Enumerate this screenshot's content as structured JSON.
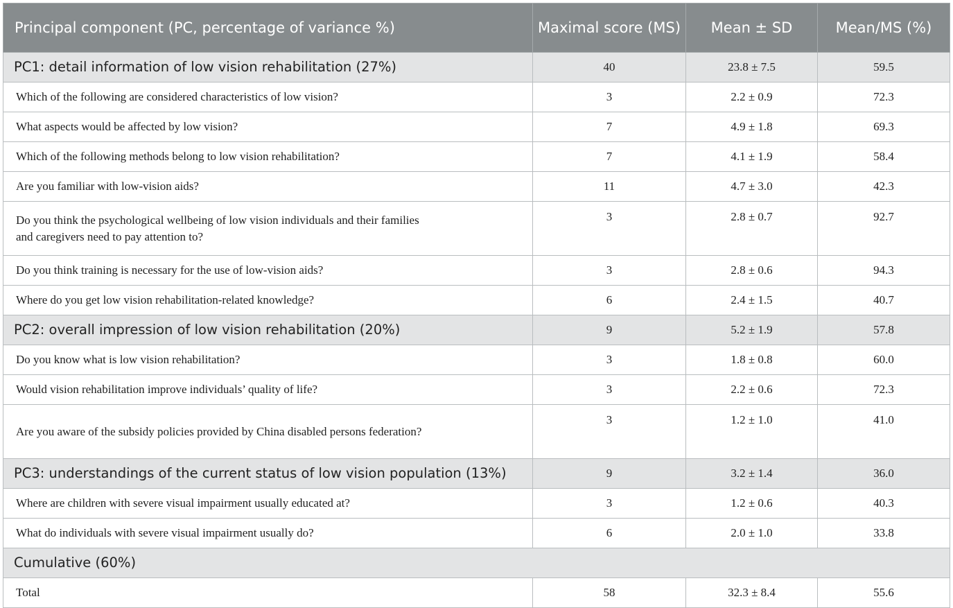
{
  "table": {
    "headers": {
      "component": "Principal component (PC, percentage of variance %)",
      "ms": "Maximal score (MS)",
      "mean_sd": "Mean ± SD",
      "mean_ms": "Mean/MS (%)"
    },
    "pc1": {
      "label": "PC1: detail information of low vision rehabilitation (27%)",
      "ms": "40",
      "mean_sd": "23.8 ± 7.5",
      "mean_ms": "59.5",
      "rows": [
        {
          "q": "Which of the following are considered characteristics of low vision?",
          "ms": "3",
          "mean_sd": "2.2 ± 0.9",
          "mean_ms": "72.3"
        },
        {
          "q": "What aspects would be affected by low vision?",
          "ms": "7",
          "mean_sd": "4.9 ± 1.8",
          "mean_ms": "69.3"
        },
        {
          "q": "Which of the following methods belong to low vision rehabilitation?",
          "ms": "7",
          "mean_sd": "4.1 ± 1.9",
          "mean_ms": "58.4"
        },
        {
          "q": "Are you familiar with low-vision aids?",
          "ms": "11",
          "mean_sd": "4.7 ± 3.0",
          "mean_ms": "42.3"
        },
        {
          "q": "Do you think the psychological wellbeing of low vision individuals and their families and caregivers need to pay attention to?",
          "ms": "3",
          "mean_sd": "2.8 ± 0.7",
          "mean_ms": "92.7"
        },
        {
          "q": "Do you think training is necessary for the use of low-vision aids?",
          "ms": "3",
          "mean_sd": "2.8 ± 0.6",
          "mean_ms": "94.3"
        },
        {
          "q": "Where do you get low vision rehabilitation-related knowledge?",
          "ms": "6",
          "mean_sd": "2.4 ± 1.5",
          "mean_ms": "40.7"
        }
      ]
    },
    "pc2": {
      "label": "PC2: overall impression of low vision rehabilitation (20%)",
      "ms": "9",
      "mean_sd": "5.2 ± 1.9",
      "mean_ms": "57.8",
      "rows": [
        {
          "q": "Do you know what is low vision rehabilitation?",
          "ms": "3",
          "mean_sd": "1.8 ± 0.8",
          "mean_ms": "60.0"
        },
        {
          "q": "Would vision rehabilitation improve individuals’ quality of life?",
          "ms": "3",
          "mean_sd": "2.2 ± 0.6",
          "mean_ms": "72.3"
        },
        {
          "q": "Are you aware of the subsidy policies provided by China disabled persons federation?",
          "ms": "3",
          "mean_sd": "1.2 ± 1.0",
          "mean_ms": "41.0"
        }
      ]
    },
    "pc3": {
      "label": "PC3: understandings of the current status of low vision population (13%)",
      "ms": "9",
      "mean_sd": "3.2 ± 1.4",
      "mean_ms": "36.0",
      "rows": [
        {
          "q": "Where are children with severe visual impairment usually educated at?",
          "ms": "3",
          "mean_sd": "1.2 ± 0.6",
          "mean_ms": "40.3"
        },
        {
          "q": "What do individuals with severe visual impairment usually do?",
          "ms": "6",
          "mean_sd": "2.0 ± 1.0",
          "mean_ms": "33.8"
        }
      ]
    },
    "cumulative": {
      "label": "Cumulative (60%)"
    },
    "total": {
      "label": "Total",
      "ms": "58",
      "mean_sd": "32.3 ± 8.4",
      "mean_ms": "55.6"
    }
  }
}
